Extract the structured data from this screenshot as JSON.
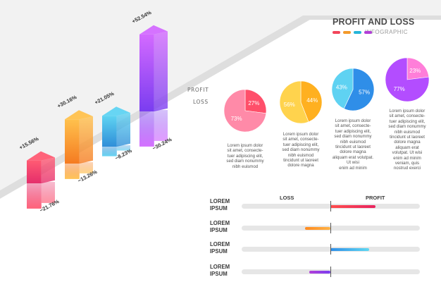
{
  "header": {
    "title": "PROFIT AND LOSS",
    "subtitle": "INFOGRAPHIC",
    "swatches": [
      "#f2455a",
      "#f39a2b",
      "#26b5d8",
      "#b23ed8"
    ]
  },
  "plane": {
    "upper_label": "PROFIT",
    "lower_label": "LOSS"
  },
  "chart_data": [
    {
      "type": "bar",
      "categories": [
        "1",
        "2",
        "3",
        "4"
      ],
      "series": [
        {
          "values": [
            15.56,
            30.16,
            21.05,
            52.54
          ],
          "labels": [
            "+15.56%",
            "+30.16%",
            "+21.05%",
            "+52.54%"
          ]
        },
        {
          "values": [
            -21.76,
            -13.26,
            -8.23,
            -30.24
          ],
          "labels": [
            "−21.76%",
            "−13.26%",
            "−8.23%",
            "−30.24%"
          ]
        }
      ],
      "colors": [
        [
          "#ff5b73",
          "#e52e6b"
        ],
        [
          "#ffc14d",
          "#f57b21"
        ],
        [
          "#5fd3f2",
          "#2f8ed8"
        ],
        [
          "#d36aff",
          "#7a3df0"
        ]
      ]
    },
    {
      "type": "pie",
      "pies": [
        {
          "slices": [
            27,
            73
          ],
          "labels": [
            "27%",
            "73%"
          ],
          "colors": [
            "#ff4f6a",
            "#ff8aa8"
          ]
        },
        {
          "slices": [
            44,
            56
          ],
          "labels": [
            "44%",
            "56%"
          ],
          "colors": [
            "#ffb020",
            "#ffd34d"
          ]
        },
        {
          "slices": [
            57,
            43
          ],
          "labels": [
            "57%",
            "43%"
          ],
          "colors": [
            "#2f8ee8",
            "#5fd2f2"
          ]
        },
        {
          "slices": [
            23,
            77
          ],
          "labels": [
            "23%",
            "77%"
          ],
          "colors": [
            "#ff7ed9",
            "#b34dff"
          ]
        }
      ]
    },
    {
      "type": "bar",
      "headers": {
        "loss": "LOSS",
        "profit": "PROFIT"
      },
      "rows": [
        {
          "label": [
            "LOREM",
            "IPSUM"
          ],
          "value": 0.5,
          "colors": [
            "#ff4d4d",
            "#e8245f"
          ]
        },
        {
          "label": [
            "LOREM",
            "IPSUM"
          ],
          "value": -0.28,
          "colors": [
            "#ff8a1f",
            "#ffb347"
          ]
        },
        {
          "label": [
            "LOREM",
            "IPSUM"
          ],
          "value": 0.43,
          "colors": [
            "#2f8ee8",
            "#5fd8f2"
          ]
        },
        {
          "label": [
            "LOREM",
            "IPSUM"
          ],
          "value": -0.24,
          "colors": [
            "#b23ed8",
            "#7a3df0"
          ]
        }
      ]
    }
  ],
  "pie_text": [
    [
      "Lorem ipsum dolor",
      "sit amet, consecte-",
      "tuer adipiscing elit,",
      "sed diam nonummy",
      "nibh euismod"
    ],
    [
      "Lorem ipsum dolor",
      "sit amet, consecte-",
      "tuer adipiscing elit,",
      "sed diam nonummy",
      "nibh euismod",
      "tincidunt ut laoreet",
      "dolore magna"
    ],
    [
      "Lorem ipsum dolor",
      "sit amet, consecte-",
      "tuer adipiscing elit,",
      "sed diam nonummy",
      "nibh euismod",
      "tincidunt ut laoreet",
      "dolore magna",
      "aliquam erat volutpat.",
      "Ut wisi",
      "enim ad minim"
    ],
    [
      "Lorem ipsum dolor",
      "sit amet, consecte-",
      "tuer adipiscing elit,",
      "sed diam nonummy",
      "nibh euismod",
      "tincidunt ut laoreet",
      "dolore magna",
      "aliquam erat",
      "volutpat. Ut wisi",
      "enim ad minim",
      "veniam, quis",
      "nostrud exerci"
    ]
  ]
}
